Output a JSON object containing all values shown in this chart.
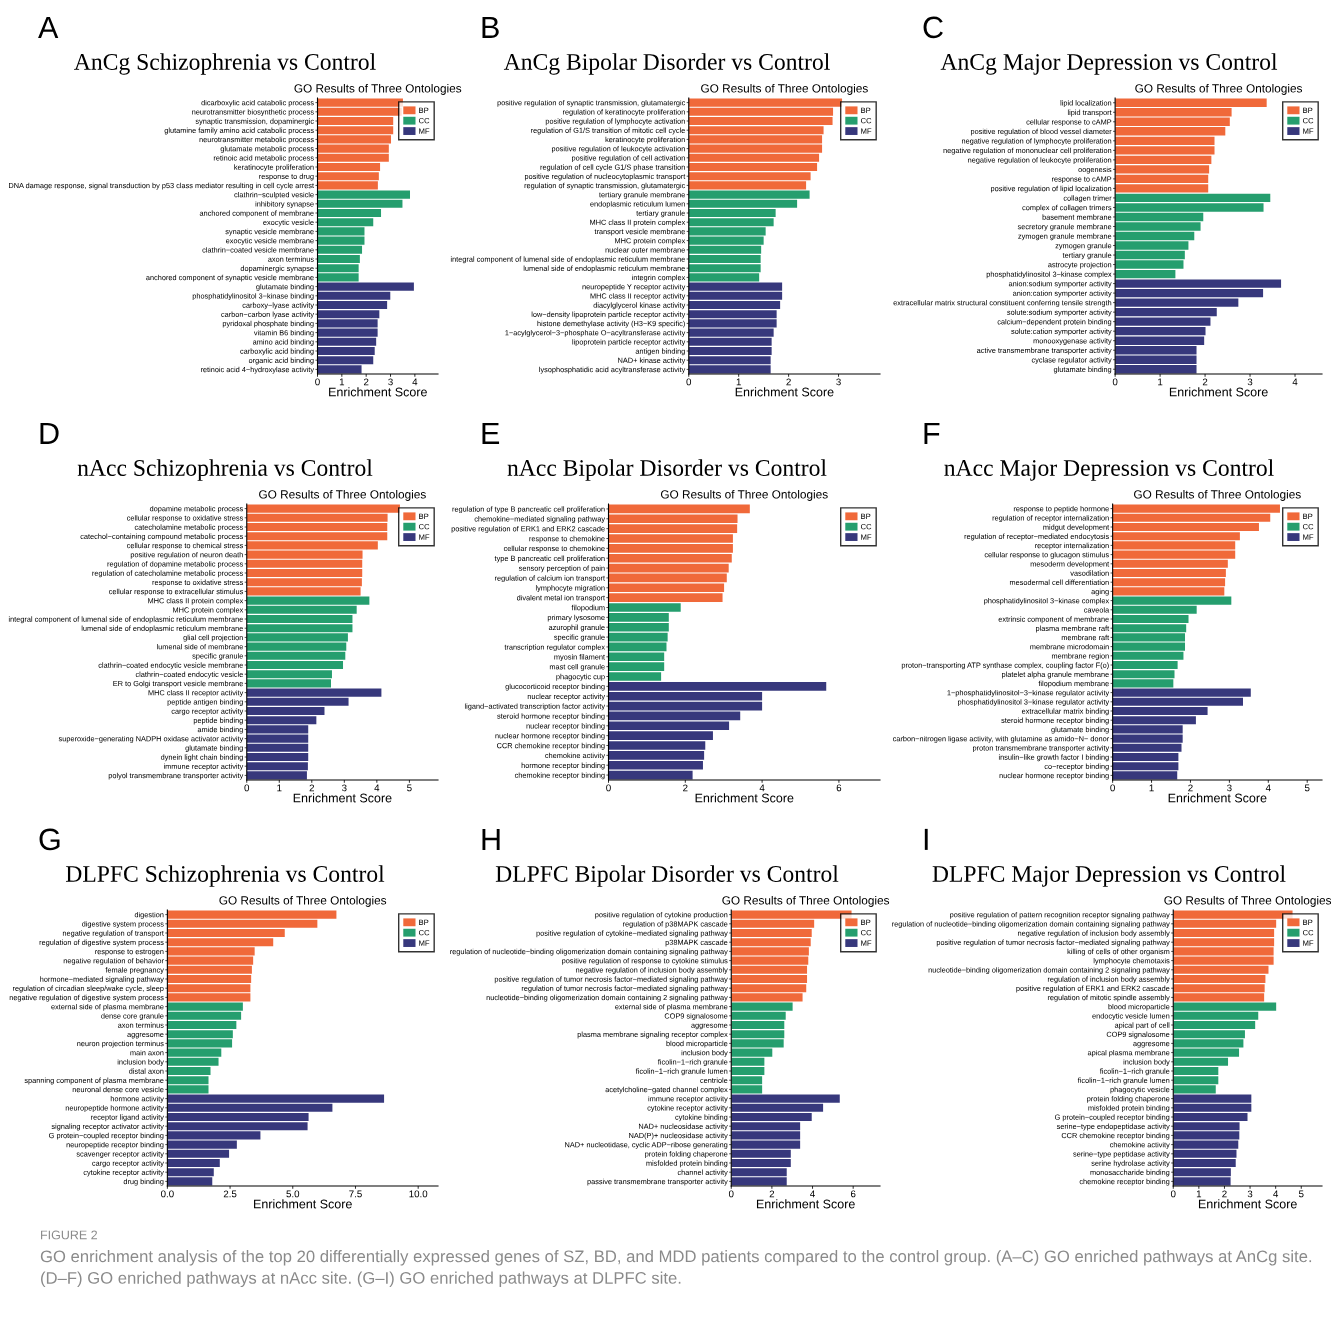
{
  "chart_data": [
    {
      "type": "bar",
      "orientation": "horizontal",
      "title": "AnCg Schizophrenia vs Control",
      "subtitle": "GO Results of Three Ontologies",
      "xlabel": "Enrichment Score",
      "legend": "top right",
      "annotations": [
        "A"
      ],
      "xlim": [
        0,
        4.95
      ],
      "xticks": [
        0,
        1,
        2,
        3,
        4
      ],
      "categories": [
        "dicarboxylic acid catabolic process",
        "neurotransmitter biosynthetic process",
        "synaptic transmission, dopaminergic",
        "glutamine family amino acid catabolic process",
        "neurotransmitter metabolic process",
        "glutamate metabolic process",
        "retinoic acid metabolic process",
        "keratinocyte proliferation",
        "response to drug",
        "DNA damage response, signal transduction by p53 class mediator resulting in cell cycle arrest",
        "clathrin−sculpted vesicle",
        "inhibitory synapse",
        "anchored component of membrane",
        "exocytic vesicle",
        "synaptic vesicle membrane",
        "exocytic vesicle membrane",
        "clathrin−coated vesicle membrane",
        "axon terminus",
        "dopaminergic synapse",
        "anchored component of synaptic vesicle membrane",
        "glutamate binding",
        "phosphatidylinositol 3−kinase binding",
        "carboxy−lyase activity",
        "carbon−carbon lyase activity",
        "pyridoxal phosphate binding",
        "vitamin B6 binding",
        "amino acid binding",
        "carboxylic acid binding",
        "organic acid binding",
        "retinoic acid 4−hydroxylase activity"
      ],
      "series": [
        {
          "name": "BP",
          "color": "#f0693a",
          "values": [
            3.51,
            3.46,
            3.11,
            3.11,
            3.02,
            2.93,
            2.93,
            2.57,
            2.52,
            2.48,
            null,
            null,
            null,
            null,
            null,
            null,
            null,
            null,
            null,
            null,
            null,
            null,
            null,
            null,
            null,
            null,
            null,
            null,
            null,
            null
          ]
        },
        {
          "name": "CC",
          "color": "#259e6e",
          "values": [
            null,
            null,
            null,
            null,
            null,
            null,
            null,
            null,
            null,
            null,
            3.8,
            3.49,
            2.61,
            2.29,
            1.93,
            1.93,
            1.83,
            1.74,
            1.69,
            1.69,
            null,
            null,
            null,
            null,
            null,
            null,
            null,
            null,
            null,
            null
          ]
        },
        {
          "name": "MF",
          "color": "#37387c",
          "values": [
            null,
            null,
            null,
            null,
            null,
            null,
            null,
            null,
            null,
            null,
            null,
            null,
            null,
            null,
            null,
            null,
            null,
            null,
            null,
            null,
            3.96,
            2.99,
            2.86,
            2.54,
            2.47,
            2.47,
            2.41,
            2.35,
            2.29,
            1.81
          ]
        }
      ]
    },
    {
      "type": "bar",
      "orientation": "horizontal",
      "title": "AnCg Bipolar Disorder vs Control",
      "subtitle": "GO Results of Three Ontologies",
      "xlabel": "Enrichment Score",
      "legend": "top right",
      "annotations": [
        "B"
      ],
      "xlim": [
        0,
        3.83
      ],
      "xticks": [
        0,
        1,
        2,
        3
      ],
      "categories": [
        "positive regulation of synaptic transmission, glutamatergic",
        "regulation of keratinocyte proliferation",
        "positive regulation of lymphocyte activation",
        "regulation of G1/S transition of mitotic cell cycle",
        "keratinocyte proliferation",
        "positive regulation of leukocyte activation",
        "positive regulation of cell activation",
        "regulation of cell cycle G1/S phase transition",
        "positive regulation of nucleocytoplasmic transport",
        "regulation of synaptic transmission, glutamatergic",
        "tertiary granule membrane",
        "endoplasmic reticulum lumen",
        "tertiary granule",
        "MHC class II protein complex",
        "transport vesicle membrane",
        "MHC protein complex",
        "nuclear outer membrane",
        "integral component of lumenal side of endoplasmic reticulum membrane",
        "lumenal side of endoplasmic reticulum membrane",
        "integrin complex",
        "neuropeptide Y receptor activity",
        "MHC class II receptor activity",
        "diacylglycerol kinase activity",
        "low−density lipoprotein particle receptor activity",
        "histone demethylase activity (H3−K9 specific)",
        "1−acylglycerol−3−phosphate O−acyltransferase activity",
        "lipoprotein particle receptor activity",
        "antigen binding",
        "NAD+ kinase activity",
        "lysophosphatidic acid acyltransferase activity"
      ],
      "series": [
        {
          "name": "BP",
          "color": "#f0693a",
          "values": [
            3.07,
            2.89,
            2.88,
            2.7,
            2.67,
            2.67,
            2.61,
            2.57,
            2.44,
            2.35,
            null,
            null,
            null,
            null,
            null,
            null,
            null,
            null,
            null,
            null,
            null,
            null,
            null,
            null,
            null,
            null,
            null,
            null,
            null,
            null
          ]
        },
        {
          "name": "CC",
          "color": "#259e6e",
          "values": [
            null,
            null,
            null,
            null,
            null,
            null,
            null,
            null,
            null,
            null,
            2.42,
            2.17,
            1.74,
            1.7,
            1.54,
            1.5,
            1.45,
            1.44,
            1.44,
            1.41,
            null,
            null,
            null,
            null,
            null,
            null,
            null,
            null,
            null,
            null
          ]
        },
        {
          "name": "MF",
          "color": "#37387c",
          "values": [
            null,
            null,
            null,
            null,
            null,
            null,
            null,
            null,
            null,
            null,
            null,
            null,
            null,
            null,
            null,
            null,
            null,
            null,
            null,
            null,
            1.87,
            1.87,
            1.83,
            1.76,
            1.76,
            1.7,
            1.66,
            1.66,
            1.64,
            1.64
          ]
        }
      ]
    },
    {
      "type": "bar",
      "orientation": "horizontal",
      "title": "AnCg Major Depression vs Control",
      "subtitle": "GO Results of Three Ontologies",
      "xlabel": "Enrichment Score",
      "legend": "top right",
      "annotations": [
        "C"
      ],
      "xlim": [
        0,
        4.6
      ],
      "xticks": [
        0,
        1,
        2,
        3,
        4
      ],
      "categories": [
        "lipid localization",
        "lipid transport",
        "cellular response to cAMP",
        "positive regulation of blood vessel diameter",
        "negative regulation of lymphocyte proliferation",
        "negative regulation of mononuclear cell proliferation",
        "negative regulation of leukocyte proliferation",
        "oogenesis",
        "response to cAMP",
        "positive regulation of lipid localization",
        "collagen trimer",
        "complex of collagen trimers",
        "basement membrane",
        "secretory granule membrane",
        "zymogen granule membrane",
        "zymogen granule",
        "tertiary granule",
        "astrocyte projection",
        "phosphatidylinositol 3−kinase complex",
        "anion:sodium symporter activity",
        "anion:cation symporter activity",
        "extracellular matrix structural constituent conferring tensile strength",
        "solute:sodium symporter activity",
        "calcium−dependent protein binding",
        "solute:cation symporter activity",
        "monooxygenase activity",
        "active transmembrane transporter activity",
        "cyclase regulator activity",
        "glutamate binding"
      ],
      "series": [
        {
          "name": "BP",
          "color": "#f0693a",
          "values": [
            3.37,
            2.59,
            2.55,
            2.45,
            2.21,
            2.21,
            2.14,
            2.09,
            2.07,
            2.07,
            null,
            null,
            null,
            null,
            null,
            null,
            null,
            null,
            null,
            null,
            null,
            null,
            null,
            null,
            null,
            null,
            null,
            null,
            null
          ]
        },
        {
          "name": "CC",
          "color": "#259e6e",
          "values": [
            null,
            null,
            null,
            null,
            null,
            null,
            null,
            null,
            null,
            null,
            3.45,
            3.3,
            1.96,
            1.9,
            1.76,
            1.63,
            1.55,
            1.52,
            1.34,
            null,
            null,
            null,
            null,
            null,
            null,
            null,
            null,
            null,
            null
          ]
        },
        {
          "name": "MF",
          "color": "#37387c",
          "values": [
            null,
            null,
            null,
            null,
            null,
            null,
            null,
            null,
            null,
            null,
            null,
            null,
            null,
            null,
            null,
            null,
            null,
            null,
            null,
            3.69,
            3.29,
            2.74,
            2.26,
            2.12,
            2.01,
            1.98,
            1.81,
            1.81,
            1.81
          ]
        }
      ]
    },
    {
      "type": "bar",
      "orientation": "horizontal",
      "title": "nAcc Schizophrenia vs Control",
      "subtitle": "GO Results of Three Ontologies",
      "xlabel": "Enrichment Score",
      "legend": "top right",
      "annotations": [
        "D"
      ],
      "xlim": [
        0,
        5.88
      ],
      "xticks": [
        0,
        1,
        2,
        3,
        4,
        5
      ],
      "categories": [
        "dopamine metabolic process",
        "cellular response to oxidative stress",
        "catecholamine metabolic process",
        "catechol−containing compound metabolic process",
        "cellular response to chemical stress",
        "positive regulation of neuron death",
        "regulation of dopamine metabolic process",
        "regulation of catecholamine metabolic process",
        "response to oxidative stress",
        "cellular response to extracellular stimulus",
        "MHC class II protein complex",
        "MHC protein complex",
        "integral component of lumenal side of endoplasmic reticulum membrane",
        "lumenal side of endoplasmic reticulum membrane",
        "glial cell projection",
        "lumenal side of membrane",
        "specific granule",
        "clathrin−coated endocytic vesicle membrane",
        "clathrin−coated endocytic vesicle",
        "ER to Golgi transport vesicle membrane",
        "MHC class II receptor activity",
        "peptide antigen binding",
        "cargo receptor activity",
        "peptide binding",
        "amide binding",
        "superoxide−generating NADPH oxidase activator activity",
        "glutamate binding",
        "dynein light chain binding",
        "immune receptor activity",
        "polyol transmembrane transporter activity"
      ],
      "series": [
        {
          "name": "BP",
          "color": "#f0693a",
          "values": [
            4.71,
            4.33,
            4.32,
            4.32,
            4.03,
            3.56,
            3.55,
            3.55,
            3.54,
            3.5,
            null,
            null,
            null,
            null,
            null,
            null,
            null,
            null,
            null,
            null,
            null,
            null,
            null,
            null,
            null,
            null,
            null,
            null,
            null,
            null
          ]
        },
        {
          "name": "CC",
          "color": "#259e6e",
          "values": [
            null,
            null,
            null,
            null,
            null,
            null,
            null,
            null,
            null,
            null,
            3.77,
            3.38,
            3.25,
            3.25,
            3.11,
            3.06,
            3.03,
            2.96,
            2.62,
            2.59,
            null,
            null,
            null,
            null,
            null,
            null,
            null,
            null,
            null,
            null
          ]
        },
        {
          "name": "MF",
          "color": "#37387c",
          "values": [
            null,
            null,
            null,
            null,
            null,
            null,
            null,
            null,
            null,
            null,
            null,
            null,
            null,
            null,
            null,
            null,
            null,
            null,
            null,
            null,
            4.14,
            3.13,
            2.39,
            2.14,
            1.89,
            1.89,
            1.89,
            1.89,
            1.88,
            1.85
          ]
        }
      ]
    },
    {
      "type": "bar",
      "orientation": "horizontal",
      "title": "nAcc Bipolar Disorder vs Control",
      "subtitle": "GO Results of Three Ontologies",
      "xlabel": "Enrichment Score",
      "legend": "top right",
      "annotations": [
        "E"
      ],
      "xlim": [
        0,
        7.07
      ],
      "xticks": [
        0,
        2,
        4,
        6
      ],
      "categories": [
        "regulation of type B pancreatic cell proliferation",
        "chemokine−mediated signaling pathway",
        "positive regulation of ERK1 and ERK2 cascade",
        "response to chemokine",
        "cellular response to chemokine",
        "type B pancreatic cell proliferation",
        "sensory perception of pain",
        "regulation of calcium ion transport",
        "lymphocyte migration",
        "divalent metal ion transport",
        "filopodium",
        "primary lysosome",
        "azurophil granule",
        "specific granule",
        "transcription regulator complex",
        "myosin filament",
        "mast cell granule",
        "phagocytic cup",
        "glucocorticoid receptor binding",
        "nuclear receptor activity",
        "ligand−activated transcription factor activity",
        "steroid hormone receptor binding",
        "nuclear receptor binding",
        "nuclear hormone receptor binding",
        "CCR chemokine receptor binding",
        "chemokine activity",
        "hormone receptor binding",
        "chemokine receptor binding"
      ],
      "series": [
        {
          "name": "BP",
          "color": "#f0693a",
          "values": [
            3.68,
            3.36,
            3.35,
            3.24,
            3.24,
            3.21,
            3.13,
            3.08,
            3.01,
            2.97,
            null,
            null,
            null,
            null,
            null,
            null,
            null,
            null,
            null,
            null,
            null,
            null,
            null,
            null,
            null,
            null,
            null,
            null
          ]
        },
        {
          "name": "CC",
          "color": "#259e6e",
          "values": [
            null,
            null,
            null,
            null,
            null,
            null,
            null,
            null,
            null,
            null,
            1.88,
            1.57,
            1.57,
            1.54,
            1.51,
            1.45,
            1.45,
            1.37,
            null,
            null,
            null,
            null,
            null,
            null,
            null,
            null,
            null,
            null
          ]
        },
        {
          "name": "MF",
          "color": "#37387c",
          "values": [
            null,
            null,
            null,
            null,
            null,
            null,
            null,
            null,
            null,
            null,
            null,
            null,
            null,
            null,
            null,
            null,
            null,
            null,
            5.67,
            4.0,
            4.0,
            3.43,
            3.14,
            2.72,
            2.52,
            2.49,
            2.46,
            2.19
          ]
        }
      ]
    },
    {
      "type": "bar",
      "orientation": "horizontal",
      "title": "nAcc Major Depression vs Control",
      "subtitle": "GO Results of Three Ontologies",
      "xlabel": "Enrichment Score",
      "legend": "top right",
      "annotations": [
        "F"
      ],
      "xlim": [
        0,
        5.38
      ],
      "xticks": [
        0,
        1,
        2,
        3,
        4,
        5
      ],
      "categories": [
        "response to peptide hormone",
        "regulation of receptor internalization",
        "midgut development",
        "regulation of receptor−mediated endocytosis",
        "receptor internalization",
        "cellular response to glucagon stimulus",
        "mesoderm development",
        "vasodilation",
        "mesodermal cell differentiation",
        "aging",
        "phosphatidylinositol 3−kinase complex",
        "caveola",
        "extrinsic component of membrane",
        "plasma membrane raft",
        "membrane raft",
        "membrane microdomain",
        "membrane region",
        "proton−transporting ATP synthase complex, coupling factor F(o)",
        "platelet alpha granule membrane",
        "filopodium membrane",
        "1−phosphatidylinositol−3−kinase regulator activity",
        "phosphatidylinositol 3−kinase regulator activity",
        "extracellular matrix binding",
        "steroid hormone receptor binding",
        "glutamate binding",
        "carbon−nitrogen ligase activity, with glutamine as amido−N− donor",
        "proton transmembrane transporter activity",
        "insulin−like growth factor I binding",
        "co−receptor binding",
        "nuclear hormone receptor binding"
      ],
      "series": [
        {
          "name": "BP",
          "color": "#f0693a",
          "values": [
            4.3,
            4.05,
            3.76,
            3.27,
            3.15,
            3.15,
            2.96,
            2.91,
            2.89,
            2.87,
            null,
            null,
            null,
            null,
            null,
            null,
            null,
            null,
            null,
            null,
            null,
            null,
            null,
            null,
            null,
            null,
            null,
            null,
            null,
            null
          ]
        },
        {
          "name": "CC",
          "color": "#259e6e",
          "values": [
            null,
            null,
            null,
            null,
            null,
            null,
            null,
            null,
            null,
            null,
            3.05,
            2.16,
            1.95,
            1.89,
            1.86,
            1.86,
            1.82,
            1.67,
            1.59,
            1.56,
            null,
            null,
            null,
            null,
            null,
            null,
            null,
            null,
            null,
            null
          ]
        },
        {
          "name": "MF",
          "color": "#37387c",
          "values": [
            null,
            null,
            null,
            null,
            null,
            null,
            null,
            null,
            null,
            null,
            null,
            null,
            null,
            null,
            null,
            null,
            null,
            null,
            null,
            null,
            3.55,
            3.35,
            2.44,
            2.14,
            1.8,
            1.8,
            1.77,
            1.69,
            1.69,
            1.66
          ]
        }
      ]
    },
    {
      "type": "bar",
      "orientation": "horizontal",
      "title": "DLPFC Schizophrenia vs Control",
      "subtitle": "GO Results of Three Ontologies",
      "xlabel": "Enrichment Score",
      "legend": "top right",
      "annotations": [
        "G"
      ],
      "xlim": [
        0,
        10.79
      ],
      "xticks": [
        {
          "value": 0,
          "label": "0.0"
        },
        2.5,
        {
          "value": 5,
          "label": "5.0"
        },
        7.5,
        {
          "value": 10,
          "label": "10.0"
        }
      ],
      "categories": [
        "digestion",
        "digestive system process",
        "negative regulation of transport",
        "regulation of digestive system process",
        "response to estrogen",
        "negative regulation of behavior",
        "female pregnancy",
        "hormone−mediated signaling pathway",
        "regulation of circadian sleep/wake cycle, sleep",
        "negative regulation of digestive system process",
        "external side of plasma membrane",
        "dense core granule",
        "axon terminus",
        "aggresome",
        "neuron projection terminus",
        "main axon",
        "inclusion body",
        "distal axon",
        "spanning component of plasma membrane",
        "neuronal dense core vesicle",
        "hormone activity",
        "neuropeptide hormone activity",
        "receptor ligand activity",
        "signaling receptor activator activity",
        "G protein−coupled receptor binding",
        "neuropeptide receptor binding",
        "scavenger receptor activity",
        "cargo receptor activity",
        "cytokine receptor activity",
        "drug binding"
      ],
      "series": [
        {
          "name": "BP",
          "color": "#f0693a",
          "values": [
            6.74,
            5.98,
            4.68,
            4.22,
            3.48,
            3.42,
            3.37,
            3.34,
            3.31,
            3.31,
            null,
            null,
            null,
            null,
            null,
            null,
            null,
            null,
            null,
            null,
            null,
            null,
            null,
            null,
            null,
            null,
            null,
            null,
            null,
            null
          ]
        },
        {
          "name": "CC",
          "color": "#259e6e",
          "values": [
            null,
            null,
            null,
            null,
            null,
            null,
            null,
            null,
            null,
            null,
            3.01,
            2.94,
            2.75,
            2.61,
            2.58,
            2.15,
            2.04,
            1.72,
            1.64,
            1.64,
            null,
            null,
            null,
            null,
            null,
            null,
            null,
            null,
            null,
            null
          ]
        },
        {
          "name": "MF",
          "color": "#37387c",
          "values": [
            null,
            null,
            null,
            null,
            null,
            null,
            null,
            null,
            null,
            null,
            null,
            null,
            null,
            null,
            null,
            null,
            null,
            null,
            null,
            null,
            8.64,
            6.58,
            5.63,
            5.59,
            3.71,
            2.77,
            2.46,
            2.09,
            1.85,
            1.79
          ]
        }
      ]
    },
    {
      "type": "bar",
      "orientation": "horizontal",
      "title": "DLPFC Bipolar Disorder vs Control",
      "subtitle": "GO Results of Three Ontologies",
      "xlabel": "Enrichment Score",
      "legend": "top right",
      "annotations": [
        "H"
      ],
      "xlim": [
        0,
        7.32
      ],
      "xticks": [
        0,
        2,
        4,
        6
      ],
      "categories": [
        "positive regulation of cytokine production",
        "regulation of p38MAPK cascade",
        "positive regulation of cytokine−mediated signaling pathway",
        "p38MAPK cascade",
        "regulation of nucleotide−binding oligomerization domain containing signaling pathway",
        "positive regulation of response to cytokine stimulus",
        "negative regulation of inclusion body assembly",
        "positive regulation of tumor necrosis factor−mediated signaling pathway",
        "regulation of tumor necrosis factor−mediated signaling pathway",
        "nucleotide−binding oligomerization domain containing 2 signaling pathway",
        "external side of plasma membrane",
        "COP9 signalosome",
        "aggresome",
        "plasma membrane signaling receptor complex",
        "blood microparticle",
        "inclusion body",
        "ficolin−1−rich granule",
        "ficolin−1−rich granule lumen",
        "centriole",
        "acetylcholine−gated channel complex",
        "immune receptor activity",
        "cytokine receptor activity",
        "cytokine binding",
        "NAD+ nucleosidase activity",
        "NAD(P)+ nucleosidase activity",
        "NAD+ nucleotidase, cyclic ADP−ribose generating",
        "protein folding chaperone",
        "misfolded protein binding",
        "channel activity",
        "passive transmembrane transporter activity"
      ],
      "series": [
        {
          "name": "BP",
          "color": "#f0693a",
          "values": [
            5.92,
            4.08,
            3.96,
            3.91,
            3.82,
            3.79,
            3.73,
            3.73,
            3.69,
            3.51,
            null,
            null,
            null,
            null,
            null,
            null,
            null,
            null,
            null,
            null,
            null,
            null,
            null,
            null,
            null,
            null,
            null,
            null,
            null,
            null
          ]
        },
        {
          "name": "CC",
          "color": "#259e6e",
          "values": [
            null,
            null,
            null,
            null,
            null,
            null,
            null,
            null,
            null,
            null,
            3.02,
            2.68,
            2.61,
            2.61,
            2.58,
            2.02,
            1.63,
            1.63,
            1.52,
            1.52,
            null,
            null,
            null,
            null,
            null,
            null,
            null,
            null,
            null,
            null
          ]
        },
        {
          "name": "MF",
          "color": "#37387c",
          "values": [
            null,
            null,
            null,
            null,
            null,
            null,
            null,
            null,
            null,
            null,
            null,
            null,
            null,
            null,
            null,
            null,
            null,
            null,
            null,
            null,
            5.34,
            4.52,
            3.96,
            3.39,
            3.39,
            3.39,
            2.93,
            2.93,
            2.73,
            2.73
          ]
        }
      ]
    },
    {
      "type": "bar",
      "orientation": "horizontal",
      "title": "DLPFC Major Depression vs Control",
      "subtitle": "GO Results of Three Ontologies",
      "xlabel": "Enrichment Score",
      "legend": "top right",
      "annotations": [
        "I",
        "FIGURE 2",
        "GO enrichment analysis of the top 20 differentially expressed genes of SZ, BD, and MDD patients compared to the control group. (A–C) GO enriched pathways at AnCg site. (D–F) GO enriched pathways at nAcc site. (G–I) GO enriched pathways at DLPFC site."
      ],
      "xlim": [
        0,
        5.81
      ],
      "xticks": [
        0,
        1,
        2,
        3,
        4,
        5
      ],
      "categories": [
        "positive regulation of pattern recognition receptor signaling pathway",
        "regulation of nucleotide−binding oligomerization domain containing signaling pathway",
        "negative regulation of inclusion body assembly",
        "positive regulation of tumor necrosis factor−mediated signaling pathway",
        "killing of cells of other organism",
        "lymphocyte chemotaxis",
        "nucleotide−binding oligomerization domain containing 2 signaling pathway",
        "regulation of inclusion body assembly",
        "positive regulation of ERK1 and ERK2 cascade",
        "regulation of mitotic spindle assembly",
        "blood microparticle",
        "endocytic vesicle lumen",
        "apical part of cell",
        "COP9 signalosome",
        "aggresome",
        "apical plasma membrane",
        "inclusion body",
        "ficolin−1−rich granule",
        "ficolin−1−rich granule lumen",
        "phagocytic vesicle",
        "protein folding chaperone",
        "misfolded protein binding",
        "G protein−coupled receptor binding",
        "serine−type endopeptidase activity",
        "CCR chemokine receptor binding",
        "chemokine activity",
        "serine−type peptidase activity",
        "serine hydrolase activity",
        "monosaccharide binding",
        "chemokine receptor binding"
      ],
      "series": [
        {
          "name": "BP",
          "color": "#f0693a",
          "values": [
            4.66,
            4.02,
            3.94,
            3.94,
            3.92,
            3.92,
            3.72,
            3.6,
            3.57,
            3.55,
            null,
            null,
            null,
            null,
            null,
            null,
            null,
            null,
            null,
            null,
            null,
            null,
            null,
            null,
            null,
            null,
            null,
            null,
            null,
            null
          ]
        },
        {
          "name": "CC",
          "color": "#259e6e",
          "values": [
            null,
            null,
            null,
            null,
            null,
            null,
            null,
            null,
            null,
            null,
            4.02,
            3.32,
            3.2,
            2.8,
            2.74,
            2.57,
            2.14,
            1.76,
            1.76,
            1.66,
            null,
            null,
            null,
            null,
            null,
            null,
            null,
            null,
            null,
            null
          ]
        },
        {
          "name": "MF",
          "color": "#37387c",
          "values": [
            null,
            null,
            null,
            null,
            null,
            null,
            null,
            null,
            null,
            null,
            null,
            null,
            null,
            null,
            null,
            null,
            null,
            null,
            null,
            null,
            3.05,
            3.05,
            2.9,
            2.59,
            2.58,
            2.54,
            2.47,
            2.44,
            2.25,
            2.24
          ]
        }
      ]
    }
  ]
}
